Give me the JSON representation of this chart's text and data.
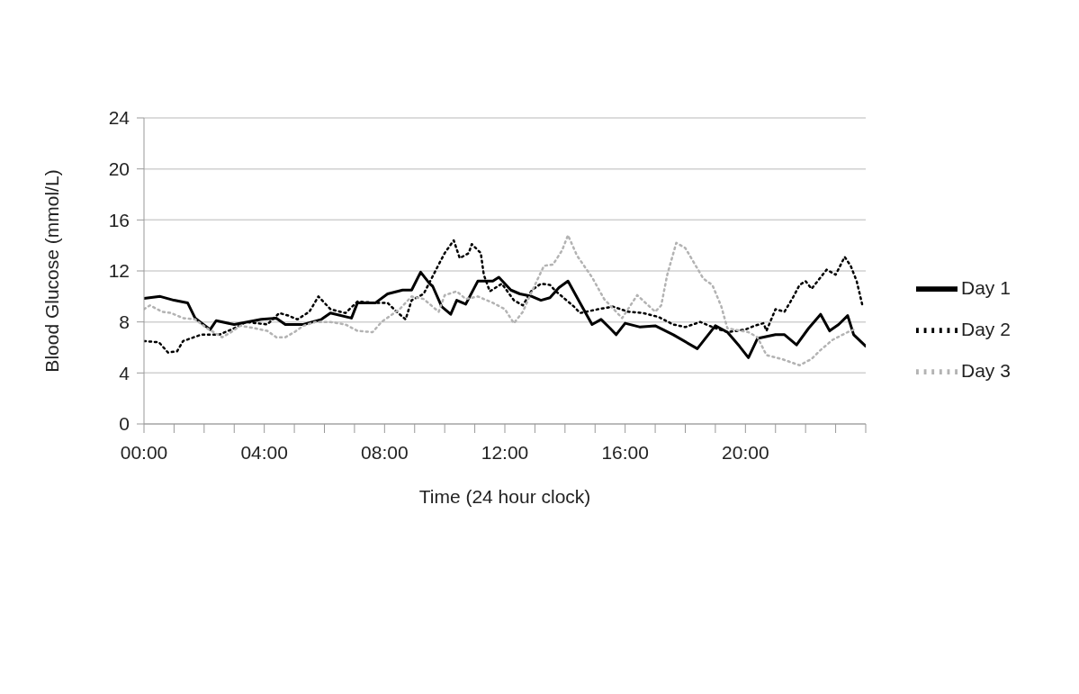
{
  "chart_data": {
    "type": "line",
    "xlabel": "Time (24 hour clock)",
    "ylabel": "Blood Glucose (mmol/L)",
    "xlim": [
      0,
      24
    ],
    "xticks": [
      {
        "value": 0,
        "label": "00:00"
      },
      {
        "value": 1,
        "label": null
      },
      {
        "value": 2,
        "label": null
      },
      {
        "value": 3,
        "label": null
      },
      {
        "value": 4,
        "label": "04:00"
      },
      {
        "value": 5,
        "label": null
      },
      {
        "value": 6,
        "label": null
      },
      {
        "value": 7,
        "label": null
      },
      {
        "value": 8,
        "label": "08:00"
      },
      {
        "value": 9,
        "label": null
      },
      {
        "value": 10,
        "label": null
      },
      {
        "value": 11,
        "label": null
      },
      {
        "value": 12,
        "label": "12:00"
      },
      {
        "value": 13,
        "label": null
      },
      {
        "value": 14,
        "label": null
      },
      {
        "value": 15,
        "label": null
      },
      {
        "value": 16,
        "label": "16:00"
      },
      {
        "value": 17,
        "label": null
      },
      {
        "value": 18,
        "label": null
      },
      {
        "value": 19,
        "label": null
      },
      {
        "value": 20,
        "label": "20:00"
      },
      {
        "value": 21,
        "label": null
      },
      {
        "value": 22,
        "label": null
      },
      {
        "value": 23,
        "label": null
      },
      {
        "value": 24,
        "label": null
      }
    ],
    "ylim": [
      0,
      24
    ],
    "yticks": [
      0,
      4,
      8,
      12,
      16,
      20,
      24
    ],
    "grid": "y",
    "legend": "right",
    "marker": "none",
    "series": [
      {
        "name": "Day 1",
        "color": "#000000",
        "line_style": "solid",
        "x": [
          0,
          0.54,
          1.0,
          1.45,
          1.7,
          2.2,
          2.4,
          3.0,
          3.9,
          4.4,
          4.7,
          5.3,
          5.9,
          6.2,
          6.9,
          7.1,
          7.7,
          8.1,
          8.6,
          8.9,
          9.2,
          9.5,
          9.6,
          9.9,
          10.2,
          10.4,
          10.7,
          11.1,
          11.6,
          11.8,
          12.2,
          12.5,
          12.9,
          13.2,
          13.5,
          13.8,
          14.1,
          14.5,
          14.9,
          15.2,
          15.5,
          15.7,
          16.0,
          16.5,
          17.0,
          17.6,
          18.4,
          18.6,
          19.0,
          19.4,
          19.8,
          20.1,
          20.4,
          21.0,
          21.3,
          21.7,
          22.1,
          22.5,
          22.8,
          23.1,
          23.4,
          23.6,
          24.0
        ],
        "values": [
          9.85,
          10.0,
          9.7,
          9.5,
          8.3,
          7.4,
          8.1,
          7.8,
          8.2,
          8.3,
          7.8,
          7.8,
          8.2,
          8.7,
          8.3,
          9.5,
          9.5,
          10.2,
          10.5,
          10.5,
          11.9,
          11.0,
          10.8,
          9.2,
          8.6,
          9.7,
          9.4,
          11.2,
          11.2,
          11.5,
          10.5,
          10.2,
          10.0,
          9.7,
          9.9,
          10.7,
          11.2,
          9.5,
          7.8,
          8.2,
          7.5,
          7.0,
          7.9,
          7.6,
          7.7,
          7.0,
          5.9,
          6.5,
          7.7,
          7.2,
          6.1,
          5.2,
          6.7,
          7.0,
          7.0,
          6.2,
          7.5,
          8.6,
          7.3,
          7.8,
          8.5,
          7.0,
          6.1
        ]
      },
      {
        "name": "Day 2",
        "color": "#000000",
        "line_style": "dotted",
        "x": [
          0,
          0.5,
          0.8,
          1.1,
          1.3,
          1.9,
          2.5,
          3.0,
          3.4,
          4.1,
          4.5,
          4.8,
          5.1,
          5.5,
          5.8,
          6.2,
          6.7,
          7.1,
          7.7,
          8.1,
          8.4,
          8.7,
          8.9,
          9.3,
          9.8,
          10.0,
          10.3,
          10.5,
          10.8,
          10.9,
          11.2,
          11.3,
          11.5,
          11.9,
          12.3,
          12.6,
          12.9,
          13.2,
          13.5,
          13.7,
          14.3,
          14.5,
          15.1,
          15.6,
          16.1,
          16.6,
          17.1,
          17.6,
          18.0,
          18.5,
          18.9,
          19.4,
          20.0,
          20.3,
          20.6,
          20.7,
          21.0,
          21.3,
          21.6,
          21.8,
          22.0,
          22.2,
          22.5,
          22.7,
          23.0,
          23.3,
          23.5,
          23.7,
          23.9
        ],
        "values": [
          6.5,
          6.4,
          5.6,
          5.7,
          6.5,
          7.0,
          7.0,
          7.5,
          8.0,
          7.8,
          8.7,
          8.5,
          8.2,
          8.8,
          10.0,
          9.0,
          8.7,
          9.6,
          9.5,
          9.5,
          8.8,
          8.2,
          9.7,
          10.2,
          12.5,
          13.4,
          14.4,
          13.0,
          13.4,
          14.1,
          13.4,
          11.7,
          10.4,
          11.0,
          9.7,
          9.3,
          10.5,
          11.0,
          10.9,
          10.4,
          9.2,
          8.7,
          9.0,
          9.2,
          8.8,
          8.7,
          8.4,
          7.8,
          7.6,
          8.0,
          7.6,
          7.2,
          7.4,
          7.7,
          7.9,
          7.3,
          9.0,
          8.8,
          10.0,
          10.9,
          11.2,
          10.6,
          11.5,
          12.1,
          11.7,
          13.1,
          12.4,
          11.2,
          9.2
        ]
      },
      {
        "name": "Day 3",
        "color": "#b3b3b3",
        "line_style": "dotted",
        "x": [
          0,
          0.2,
          0.6,
          0.9,
          1.3,
          1.7,
          2.1,
          2.6,
          2.9,
          3.2,
          3.7,
          4.1,
          4.4,
          4.7,
          5.0,
          5.3,
          5.7,
          6.2,
          6.7,
          7.1,
          7.6,
          7.9,
          8.5,
          8.9,
          9.3,
          9.8,
          10.0,
          10.4,
          10.7,
          11.1,
          11.6,
          12.0,
          12.3,
          12.6,
          12.9,
          13.3,
          13.6,
          13.9,
          14.1,
          14.4,
          14.9,
          15.3,
          15.7,
          15.9,
          16.4,
          17.0,
          17.2,
          17.4,
          17.7,
          18.0,
          18.6,
          18.9,
          19.2,
          19.4,
          20.1,
          20.4,
          20.7,
          21.2,
          21.8,
          22.2,
          22.5,
          22.9,
          23.4,
          23.7
        ],
        "values": [
          9.0,
          9.3,
          8.8,
          8.7,
          8.3,
          8.2,
          7.5,
          6.8,
          7.2,
          7.7,
          7.5,
          7.3,
          6.8,
          6.8,
          7.2,
          7.7,
          8.0,
          8.0,
          7.8,
          7.3,
          7.2,
          8.0,
          9.0,
          10.0,
          9.8,
          8.8,
          10.1,
          10.4,
          9.8,
          10.0,
          9.5,
          9.0,
          7.9,
          8.8,
          10.4,
          12.4,
          12.5,
          13.6,
          14.8,
          13.2,
          11.5,
          9.8,
          8.8,
          8.3,
          10.1,
          8.8,
          9.3,
          11.7,
          14.2,
          13.8,
          11.4,
          10.9,
          9.2,
          7.5,
          7.2,
          6.8,
          5.4,
          5.1,
          4.6,
          5.1,
          5.8,
          6.6,
          7.2,
          7.5
        ]
      }
    ]
  }
}
